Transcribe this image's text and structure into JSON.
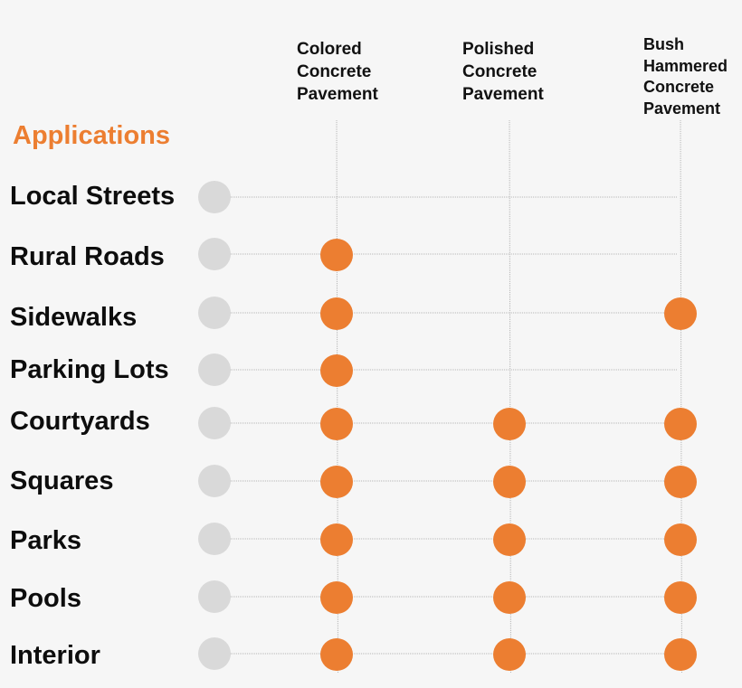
{
  "section_title": "Applications",
  "columns": [
    {
      "label": "Colored\nConcrete\nPavement"
    },
    {
      "label": "Polished\nConcrete\nPavement"
    },
    {
      "label": "Bush\nHammered\nConcrete\nPavement"
    }
  ],
  "rows": [
    {
      "label": "Local Streets",
      "marks": [
        false,
        false,
        false
      ]
    },
    {
      "label": "Rural Roads",
      "marks": [
        true,
        false,
        false
      ]
    },
    {
      "label": "Sidewalks",
      "marks": [
        true,
        false,
        true
      ]
    },
    {
      "label": "Parking Lots",
      "marks": [
        true,
        false,
        false
      ]
    },
    {
      "label": "Courtyards",
      "marks": [
        true,
        true,
        true
      ]
    },
    {
      "label": "Squares",
      "marks": [
        true,
        true,
        true
      ]
    },
    {
      "label": "Parks",
      "marks": [
        true,
        true,
        true
      ]
    },
    {
      "label": "Pools",
      "marks": [
        true,
        true,
        true
      ]
    },
    {
      "label": "Interior",
      "marks": [
        true,
        true,
        true
      ]
    }
  ],
  "colors": {
    "accent": "#ec7e31",
    "inactive": "#d9d9d9",
    "text": "#0d0d0d",
    "grid": "#b5b5b5"
  }
}
